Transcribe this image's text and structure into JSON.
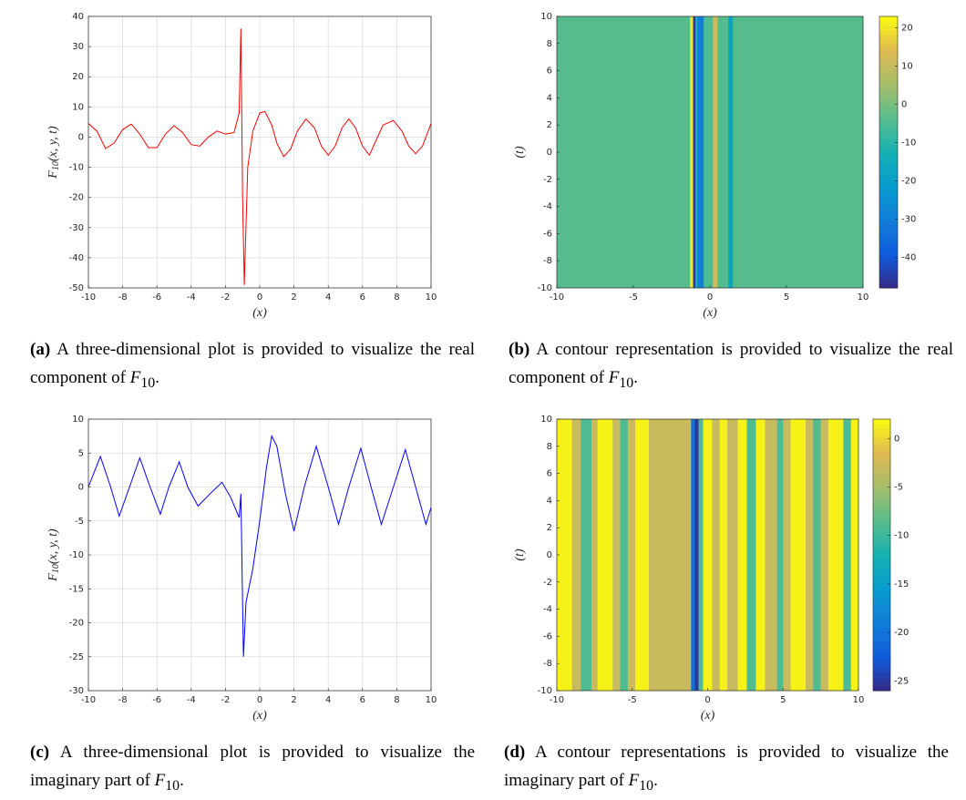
{
  "chart_data": [
    {
      "type": "line",
      "color": "#ff0000",
      "grid": true,
      "x": [
        -10,
        -9.5,
        -9,
        -8.5,
        -8,
        -7.5,
        -7,
        -6.5,
        -6,
        -5.5,
        -5,
        -4.5,
        -4,
        -3.5,
        -3,
        -2.5,
        -2,
        -1.5,
        -1.2,
        -1.1,
        -1,
        -0.9,
        -0.7,
        -0.4,
        0,
        0.3,
        0.7,
        1,
        1.4,
        1.8,
        2.2,
        2.7,
        3.2,
        3.6,
        4,
        4.4,
        4.8,
        5.2,
        5.6,
        6,
        6.4,
        6.8,
        7.2,
        7.8,
        8.3,
        8.7,
        9.1,
        9.5,
        10
      ],
      "values": [
        4.5,
        2,
        -3.8,
        -2,
        2.5,
        4.3,
        1,
        -3.5,
        -3.5,
        1,
        3.8,
        1.5,
        -2.5,
        -3,
        0,
        2,
        1,
        1.5,
        8,
        36,
        -20,
        -49,
        -10,
        2,
        8,
        8.5,
        4,
        -2,
        -6.5,
        -4,
        2,
        6,
        3,
        -3,
        -6,
        -3,
        3,
        6,
        3,
        -3,
        -6,
        -1,
        4,
        5.5,
        2,
        -3,
        -5.5,
        -3,
        4.5
      ],
      "xlim": [
        -10,
        10
      ],
      "xticks": [
        -10,
        -8,
        -6,
        -4,
        -2,
        0,
        2,
        4,
        6,
        8,
        10
      ],
      "ylim": [
        -50,
        40
      ],
      "yticks": [
        -50,
        -40,
        -30,
        -20,
        -10,
        0,
        10,
        20,
        30,
        40
      ],
      "xlabel": "(x)",
      "ylabel": "F",
      "ylabel_sub": "10",
      "ylabel_rest": "(x, y, t)",
      "caption_label": "(a)",
      "caption": "A three-dimensional plot is provided to visualize the real component of ",
      "caption_symbol": "F",
      "caption_sub": "10",
      "caption_end": "."
    },
    {
      "type": "heatmap",
      "colormap": [
        "#352a87",
        "#0f5cdd",
        "#127dd8",
        "#079ccf",
        "#15b1b4",
        "#59bd8c",
        "#a5be6b",
        "#e1b952",
        "#f9fb0e"
      ],
      "x_edges": [
        -10,
        -1.3,
        -1.1,
        -0.95,
        -0.8,
        -0.4,
        0.2,
        0.5,
        1.2,
        1.5,
        10
      ],
      "values": [
        -4,
        20,
        -45,
        -15,
        -30,
        -5,
        12,
        -4,
        -18,
        -4
      ],
      "clim": [
        -48,
        23
      ],
      "cticks": [
        -40,
        -30,
        -20,
        -10,
        0,
        10,
        20
      ],
      "xlim": [
        -10,
        10
      ],
      "xticks": [
        -10,
        -5,
        0,
        5,
        10
      ],
      "ylim": [
        -10,
        10
      ],
      "yticks": [
        -10,
        -8,
        -6,
        -4,
        -2,
        0,
        2,
        4,
        6,
        8,
        10
      ],
      "xlabel": "(x)",
      "ylabel": "(t)",
      "caption_label": "(b)",
      "caption": "A contour representation is provided to visualize the real component of ",
      "caption_symbol": "F",
      "caption_sub": "10",
      "caption_end": "."
    },
    {
      "type": "line",
      "color": "#0000ff",
      "grid": true,
      "x": [
        -10,
        -9.3,
        -8.7,
        -8.2,
        -7.6,
        -7,
        -6.4,
        -5.8,
        -5.3,
        -4.7,
        -4.2,
        -3.6,
        -2.9,
        -2.2,
        -1.7,
        -1.2,
        -1.1,
        -0.95,
        -0.8,
        -0.4,
        0,
        0.4,
        0.7,
        1,
        1.5,
        2,
        2.6,
        3.3,
        4,
        4.6,
        5.2,
        5.9,
        6.5,
        7.1,
        7.8,
        8.5,
        9.1,
        9.7,
        10
      ],
      "values": [
        0,
        4.5,
        0,
        -4.3,
        0,
        4.3,
        0,
        -4,
        0,
        3.7,
        0,
        -2.8,
        -1,
        0.7,
        -1.5,
        -4.5,
        -1,
        -25,
        -17,
        -12,
        -5,
        3,
        7.5,
        6,
        -1,
        -6.5,
        0,
        6,
        0,
        -5.5,
        0,
        5.7,
        0,
        -5.5,
        0,
        5.5,
        0,
        -5.5,
        -3
      ],
      "xlim": [
        -10,
        10
      ],
      "xticks": [
        -10,
        -8,
        -6,
        -4,
        -2,
        0,
        2,
        4,
        6,
        8,
        10
      ],
      "ylim": [
        -30,
        10
      ],
      "yticks": [
        -30,
        -25,
        -20,
        -15,
        -10,
        -5,
        0,
        5,
        10
      ],
      "xlabel": "(x)",
      "ylabel": "F",
      "ylabel_sub": "10",
      "ylabel_rest": "(x, y, t)",
      "caption_label": "(c)",
      "caption": "A three-dimensional plot is provided to visualize the imaginary part of ",
      "caption_symbol": "F",
      "caption_sub": "10",
      "caption_end": "."
    },
    {
      "type": "heatmap",
      "colormap": [
        "#352a87",
        "#0f5cdd",
        "#127dd8",
        "#079ccf",
        "#15b1b4",
        "#59bd8c",
        "#a5be6b",
        "#e1b952",
        "#f9fb0e"
      ],
      "x_edges": [
        -10,
        -9,
        -8.4,
        -7.7,
        -7.3,
        -6.3,
        -5.8,
        -5.3,
        -4.8,
        -3.9,
        -1.1,
        -0.85,
        -0.6,
        -0.3,
        0.3,
        0.8,
        1.3,
        2,
        2.6,
        3.2,
        3.8,
        4.6,
        5,
        5.5,
        6.5,
        7,
        7.5,
        8,
        9,
        9.5,
        10
      ],
      "values": [
        1.5,
        -3,
        -9,
        -3,
        1.5,
        -3,
        -9,
        -3,
        1.5,
        -3,
        -20,
        -25,
        -9,
        1.5,
        -3,
        1.5,
        -3,
        1.5,
        -9,
        1.5,
        -3,
        -9,
        -3,
        1.5,
        -3,
        -9,
        -3,
        1.5,
        -9,
        1.5
      ],
      "clim": [
        -26,
        2
      ],
      "cticks": [
        -25,
        -20,
        -15,
        -10,
        -5,
        0
      ],
      "xlim": [
        -10,
        10
      ],
      "xticks": [
        -10,
        -5,
        0,
        5,
        10
      ],
      "ylim": [
        -10,
        10
      ],
      "yticks": [
        -10,
        -8,
        -6,
        -4,
        -2,
        0,
        2,
        4,
        6,
        8,
        10
      ],
      "xlabel": "(x)",
      "ylabel": "(t)",
      "caption_label": "(d)",
      "caption": "A contour representations is provided to visualize the imaginary part of ",
      "caption_symbol": "F",
      "caption_sub": "10",
      "caption_end": "."
    }
  ]
}
